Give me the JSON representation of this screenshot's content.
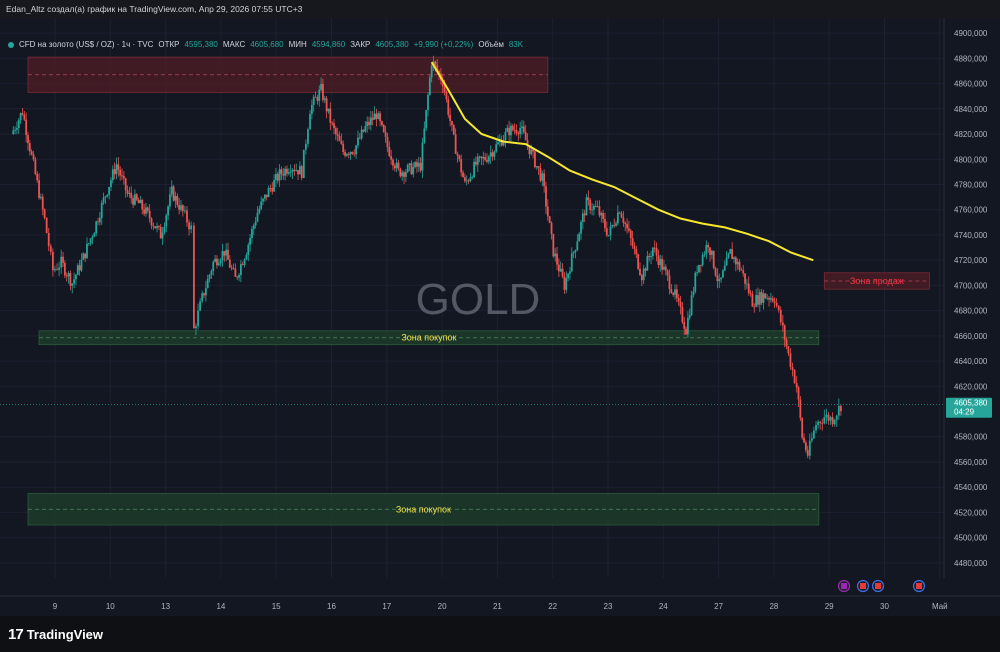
{
  "header": {
    "caption": "Edan_Altz создал(а) график на TradingView.com, Апр 29, 2026 07:55 UTC+3"
  },
  "legend": {
    "symbol": "CFD на золото (US$ / OZ) · 1ч · TVC",
    "open_label": "ОТКР",
    "open_value": "4595,380",
    "high_label": "МАКС",
    "high_value": "4605,680",
    "low_label": "МИН",
    "low_value": "4594,860",
    "close_label": "ЗАКР",
    "close_value": "4605,380",
    "change": "+9,990 (+0,22%)",
    "volume_label": "Объём",
    "volume_value": "83K"
  },
  "watermark": "GOLD",
  "colors": {
    "background": "#131722",
    "up": "#26a69a",
    "down": "#ef5350",
    "ma_line": "#f7e82e",
    "buy_zone": "#1e3b2a",
    "sell_zone": "#4a1c24",
    "buy_label": "#f2e34c",
    "sell_label": "#f23645"
  },
  "footer": {
    "brand": "TradingView",
    "logo_mark": "17"
  },
  "chart_data": {
    "type": "candlestick",
    "symbol": "CFD на золото (US$ / OZ)",
    "interval": "1ч",
    "x_ticks": [
      "9",
      "10",
      "13",
      "14",
      "15",
      "16",
      "17",
      "20",
      "21",
      "22",
      "23",
      "24",
      "27",
      "28",
      "29",
      "30",
      "Май"
    ],
    "y_ticks": [
      "4900,000",
      "4880,000",
      "4860,000",
      "4840,000",
      "4820,000",
      "4800,000",
      "4780,000",
      "4760,000",
      "4740,000",
      "4720,000",
      "4700,000",
      "4680,000",
      "4660,000",
      "4640,000",
      "4620,000",
      "4580,000",
      "4560,000",
      "4540,000",
      "4520,000",
      "4500,000",
      "4480,000"
    ],
    "ylim": [
      4468,
      4912
    ],
    "current_price": {
      "value": 4605.38,
      "label": "4605,380",
      "countdown": "04:29"
    },
    "zones": [
      {
        "name": "sell-zone-top",
        "label": "",
        "kind": "sell",
        "from_x": 0.0,
        "to_x": 9.4,
        "y_low": 4853,
        "y_high": 4881
      },
      {
        "name": "sell-zone-right",
        "label": "Зона продаж",
        "kind": "sell",
        "from_x": 14.4,
        "to_x": 16.3,
        "y_low": 4697,
        "y_high": 4710
      },
      {
        "name": "buy-zone-mid",
        "label": "Зона покупок",
        "kind": "buy",
        "from_x": 0.2,
        "to_x": 14.3,
        "y_low": 4653,
        "y_high": 4664
      },
      {
        "name": "buy-zone-low",
        "label": "Зона покупок",
        "kind": "buy",
        "from_x": 0.0,
        "to_x": 14.3,
        "y_low": 4510,
        "y_high": 4535
      }
    ],
    "moving_average": [
      [
        7.3,
        4877
      ],
      [
        7.6,
        4855
      ],
      [
        7.9,
        4832
      ],
      [
        8.2,
        4820
      ],
      [
        8.6,
        4814
      ],
      [
        9.0,
        4812
      ],
      [
        9.4,
        4802
      ],
      [
        9.8,
        4791
      ],
      [
        10.2,
        4784
      ],
      [
        10.6,
        4778
      ],
      [
        11.0,
        4769
      ],
      [
        11.4,
        4760
      ],
      [
        11.8,
        4753
      ],
      [
        12.2,
        4749
      ],
      [
        12.6,
        4746
      ],
      [
        13.0,
        4741
      ],
      [
        13.4,
        4735
      ],
      [
        13.8,
        4726
      ],
      [
        14.2,
        4720
      ]
    ],
    "price_path": [
      [
        -0.3,
        4820
      ],
      [
        -0.1,
        4838
      ],
      [
        0.1,
        4795
      ],
      [
        0.3,
        4752
      ],
      [
        0.45,
        4712
      ],
      [
        0.6,
        4718
      ],
      [
        0.8,
        4702
      ],
      [
        1.0,
        4722
      ],
      [
        1.2,
        4745
      ],
      [
        1.4,
        4772
      ],
      [
        1.6,
        4796
      ],
      [
        1.8,
        4772
      ],
      [
        2.0,
        4765
      ],
      [
        2.2,
        4754
      ],
      [
        2.4,
        4740
      ],
      [
        2.6,
        4774
      ],
      [
        2.8,
        4758
      ],
      [
        2.95,
        4745
      ],
      [
        3.0,
        4665
      ],
      [
        3.15,
        4690
      ],
      [
        3.35,
        4718
      ],
      [
        3.55,
        4727
      ],
      [
        3.75,
        4705
      ],
      [
        3.95,
        4728
      ],
      [
        4.15,
        4758
      ],
      [
        4.35,
        4775
      ],
      [
        4.55,
        4788
      ],
      [
        4.75,
        4795
      ],
      [
        4.95,
        4790
      ],
      [
        5.1,
        4840
      ],
      [
        5.3,
        4855
      ],
      [
        5.5,
        4826
      ],
      [
        5.7,
        4806
      ],
      [
        5.9,
        4808
      ],
      [
        6.1,
        4825
      ],
      [
        6.3,
        4836
      ],
      [
        6.5,
        4810
      ],
      [
        6.7,
        4790
      ],
      [
        6.9,
        4792
      ],
      [
        7.1,
        4795
      ],
      [
        7.3,
        4878
      ],
      [
        7.5,
        4862
      ],
      [
        7.7,
        4815
      ],
      [
        7.9,
        4780
      ],
      [
        8.1,
        4796
      ],
      [
        8.3,
        4802
      ],
      [
        8.5,
        4812
      ],
      [
        8.7,
        4823
      ],
      [
        8.9,
        4825
      ],
      [
        9.1,
        4805
      ],
      [
        9.3,
        4784
      ],
      [
        9.5,
        4727
      ],
      [
        9.7,
        4700
      ],
      [
        9.9,
        4732
      ],
      [
        10.1,
        4765
      ],
      [
        10.3,
        4760
      ],
      [
        10.5,
        4740
      ],
      [
        10.7,
        4761
      ],
      [
        10.9,
        4736
      ],
      [
        11.1,
        4708
      ],
      [
        11.3,
        4730
      ],
      [
        11.5,
        4712
      ],
      [
        11.7,
        4692
      ],
      [
        11.9,
        4665
      ],
      [
        12.1,
        4714
      ],
      [
        12.3,
        4734
      ],
      [
        12.5,
        4700
      ],
      [
        12.7,
        4726
      ],
      [
        12.9,
        4712
      ],
      [
        13.1,
        4687
      ],
      [
        13.3,
        4692
      ],
      [
        13.5,
        4690
      ],
      [
        13.65,
        4665
      ],
      [
        13.75,
        4645
      ],
      [
        13.9,
        4620
      ],
      [
        14.0,
        4580
      ],
      [
        14.1,
        4566
      ],
      [
        14.25,
        4590
      ],
      [
        14.4,
        4596
      ],
      [
        14.55,
        4594
      ],
      [
        14.7,
        4605
      ]
    ]
  }
}
